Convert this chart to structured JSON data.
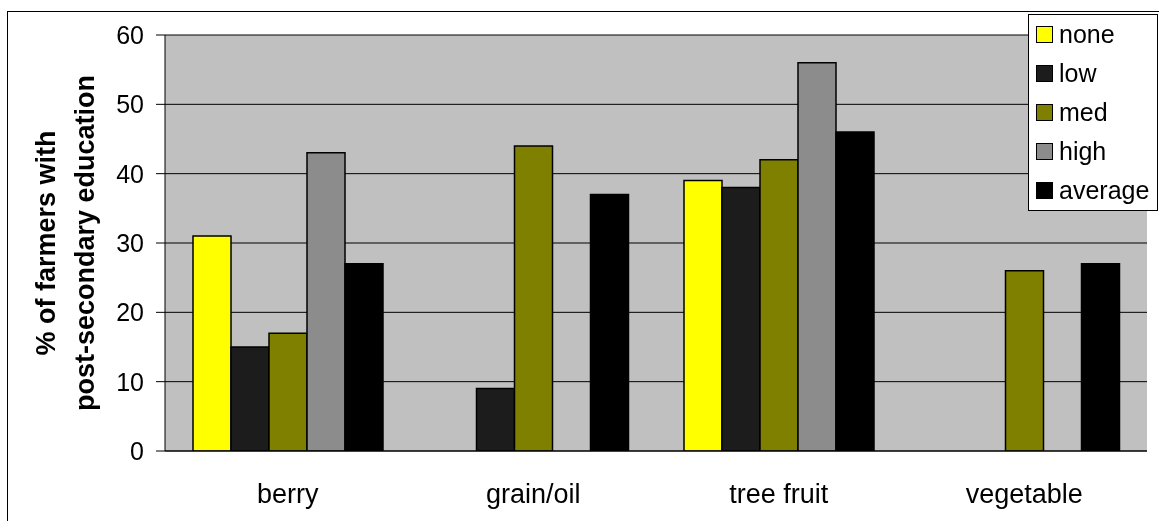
{
  "chart_data": {
    "type": "bar",
    "ylabel": "% of farmers with post-secondary education",
    "categories": [
      "berry",
      "grain/oil",
      "tree fruit",
      "vegetable"
    ],
    "series": [
      {
        "name": "none",
        "color": "#ffff00",
        "values": [
          31,
          null,
          39,
          null
        ]
      },
      {
        "name": "low",
        "color": "#1c1c1c",
        "values": [
          15,
          9,
          38,
          null
        ]
      },
      {
        "name": "med",
        "color": "#808000",
        "values": [
          17,
          44,
          42,
          26
        ]
      },
      {
        "name": "high",
        "color": "#8c8c8c",
        "values": [
          43,
          null,
          56,
          null
        ]
      },
      {
        "name": "average",
        "color": "#000000",
        "values": [
          27,
          37,
          46,
          27
        ]
      }
    ],
    "ylim": [
      0,
      60
    ],
    "yticks": [
      0,
      10,
      20,
      30,
      40,
      50,
      60
    ],
    "grid": "y",
    "legend": "top right"
  }
}
